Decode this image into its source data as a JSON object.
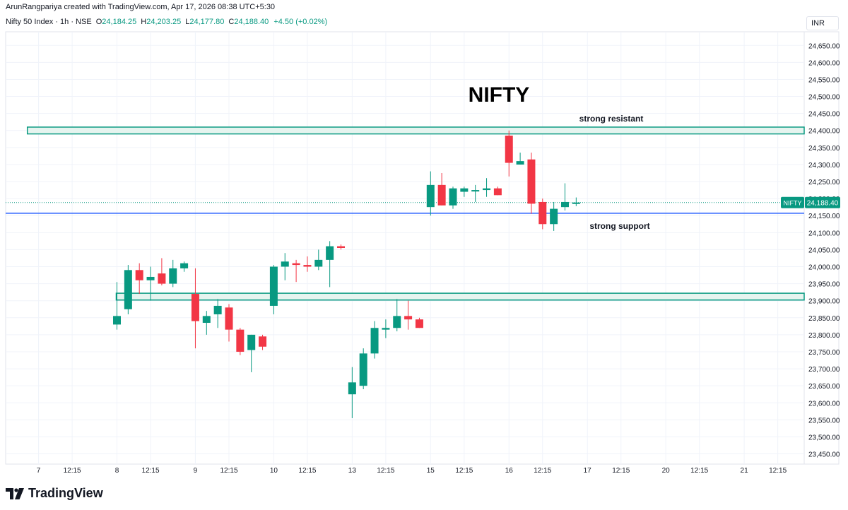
{
  "header": {
    "attribution": "ArunRangpariya created with TradingView.com, Apr 17, 2026 08:38 UTC+5:30"
  },
  "symbol_bar": {
    "symbol": "Nifty 50 Index · 1h · NSE",
    "open_label": "O",
    "open": "24,184.25",
    "high_label": "H",
    "high": "24,203.25",
    "low_label": "L",
    "low": "24,177.80",
    "close_label": "C",
    "close": "24,188.40",
    "change": "+4.50 (+0.02%)"
  },
  "currency": "INR",
  "footer": {
    "brand": "TradingView"
  },
  "colors": {
    "up": "#089981",
    "down": "#f23645",
    "support": "#2962ff",
    "zone_fill": "#e6f4ef",
    "zone_border": "#089981",
    "grid": "#f0f3fa"
  },
  "chart_data": {
    "type": "candlestick",
    "title": "NIFTY",
    "ylim": [
      23420,
      24690
    ],
    "y_ticks": [
      23450,
      23500,
      23550,
      23600,
      23650,
      23700,
      23750,
      23800,
      23850,
      23900,
      23950,
      24000,
      24050,
      24100,
      24150,
      24200,
      24250,
      24300,
      24350,
      24400,
      24450,
      24500,
      24550,
      24600,
      24650
    ],
    "y_tick_labels": [
      "23,450.00",
      "23,500.00",
      "23,550.00",
      "23,600.00",
      "23,650.00",
      "23,700.00",
      "23,750.00",
      "23,800.00",
      "23,850.00",
      "23,900.00",
      "23,950.00",
      "24,000.00",
      "24,050.00",
      "24,100.00",
      "24,150.00",
      "24,200.00",
      "24,250.00",
      "24,300.00",
      "24,350.00",
      "24,400.00",
      "24,450.00",
      "24,500.00",
      "24,550.00",
      "24,600.00",
      "24,650.00"
    ],
    "x_ticks": [
      {
        "label": "7",
        "bar": -7
      },
      {
        "label": "12:15",
        "bar": -4
      },
      {
        "label": "8",
        "bar": 0
      },
      {
        "label": "12:15",
        "bar": 3
      },
      {
        "label": "9",
        "bar": 7
      },
      {
        "label": "12:15",
        "bar": 10
      },
      {
        "label": "10",
        "bar": 14
      },
      {
        "label": "12:15",
        "bar": 17
      },
      {
        "label": "13",
        "bar": 21
      },
      {
        "label": "12:15",
        "bar": 24
      },
      {
        "label": "15",
        "bar": 28
      },
      {
        "label": "12:15",
        "bar": 31
      },
      {
        "label": "16",
        "bar": 35
      },
      {
        "label": "12:15",
        "bar": 38
      },
      {
        "label": "17",
        "bar": 42
      },
      {
        "label": "12:15",
        "bar": 45
      },
      {
        "label": "20",
        "bar": 49
      },
      {
        "label": "12:15",
        "bar": 52
      },
      {
        "label": "21",
        "bar": 56
      },
      {
        "label": "12:15",
        "bar": 59
      }
    ],
    "candles": [
      {
        "o": 23830,
        "h": 23955,
        "l": 23815,
        "c": 23855
      },
      {
        "o": 23875,
        "h": 24005,
        "l": 23860,
        "c": 23990
      },
      {
        "o": 23990,
        "h": 24010,
        "l": 23920,
        "c": 23960
      },
      {
        "o": 23960,
        "h": 24000,
        "l": 23900,
        "c": 23970
      },
      {
        "o": 23980,
        "h": 24025,
        "l": 23945,
        "c": 23950
      },
      {
        "o": 23950,
        "h": 24020,
        "l": 23940,
        "c": 23995
      },
      {
        "o": 23995,
        "h": 24015,
        "l": 23985,
        "c": 24010
      },
      {
        "o": 23920,
        "h": 23995,
        "l": 23760,
        "c": 23840
      },
      {
        "o": 23835,
        "h": 23870,
        "l": 23800,
        "c": 23855
      },
      {
        "o": 23860,
        "h": 23905,
        "l": 23820,
        "c": 23885
      },
      {
        "o": 23880,
        "h": 23890,
        "l": 23780,
        "c": 23815
      },
      {
        "o": 23815,
        "h": 23820,
        "l": 23740,
        "c": 23750
      },
      {
        "o": 23755,
        "h": 23800,
        "l": 23690,
        "c": 23800
      },
      {
        "o": 23795,
        "h": 23800,
        "l": 23755,
        "c": 23765
      },
      {
        "o": 23885,
        "h": 24005,
        "l": 23860,
        "c": 24000
      },
      {
        "o": 24000,
        "h": 24040,
        "l": 23960,
        "c": 24015
      },
      {
        "o": 24010,
        "h": 24020,
        "l": 23955,
        "c": 24005
      },
      {
        "o": 24005,
        "h": 24030,
        "l": 23985,
        "c": 24000
      },
      {
        "o": 24000,
        "h": 24050,
        "l": 23990,
        "c": 24020
      },
      {
        "o": 24020,
        "h": 24075,
        "l": 23940,
        "c": 24060
      },
      {
        "o": 24060,
        "h": 24065,
        "l": 24050,
        "c": 24055
      },
      {
        "o": 23625,
        "h": 23705,
        "l": 23555,
        "c": 23660
      },
      {
        "o": 23650,
        "h": 23760,
        "l": 23640,
        "c": 23745
      },
      {
        "o": 23745,
        "h": 23840,
        "l": 23730,
        "c": 23820
      },
      {
        "o": 23815,
        "h": 23845,
        "l": 23790,
        "c": 23820
      },
      {
        "o": 23820,
        "h": 23905,
        "l": 23810,
        "c": 23855
      },
      {
        "o": 23855,
        "h": 23900,
        "l": 23815,
        "c": 23845
      },
      {
        "o": 23845,
        "h": 23850,
        "l": 23820,
        "c": 23820
      },
      {
        "o": 24175,
        "h": 24280,
        "l": 24150,
        "c": 24240
      },
      {
        "o": 24240,
        "h": 24275,
        "l": 24180,
        "c": 24180
      },
      {
        "o": 24180,
        "h": 24235,
        "l": 24170,
        "c": 24230
      },
      {
        "o": 24220,
        "h": 24235,
        "l": 24205,
        "c": 24230
      },
      {
        "o": 24225,
        "h": 24240,
        "l": 24190,
        "c": 24225
      },
      {
        "o": 24225,
        "h": 24260,
        "l": 24205,
        "c": 24230
      },
      {
        "o": 24230,
        "h": 24235,
        "l": 24210,
        "c": 24210
      },
      {
        "o": 24385,
        "h": 24400,
        "l": 24265,
        "c": 24305
      },
      {
        "o": 24300,
        "h": 24335,
        "l": 24300,
        "c": 24310
      },
      {
        "o": 24315,
        "h": 24335,
        "l": 24155,
        "c": 24185
      },
      {
        "o": 24190,
        "h": 24200,
        "l": 24110,
        "c": 24125
      },
      {
        "o": 24125,
        "h": 24190,
        "l": 24105,
        "c": 24170
      },
      {
        "o": 24175,
        "h": 24245,
        "l": 24165,
        "c": 24190
      },
      {
        "o": 24184.25,
        "h": 24203.25,
        "l": 24177.8,
        "c": 24188.4
      }
    ],
    "last_price": 24188.4,
    "last_price_label": "24,188.40",
    "last_price_tag": "NIFTY",
    "levels": {
      "resistance": {
        "low": 24390,
        "high": 24410,
        "from_bar": -8,
        "label": "strong resistant"
      },
      "demand": {
        "low": 23902,
        "high": 23922,
        "from_bar": 0,
        "label": ""
      },
      "support": {
        "value": 24157,
        "from_bar": -8,
        "label": "strong support"
      }
    }
  }
}
